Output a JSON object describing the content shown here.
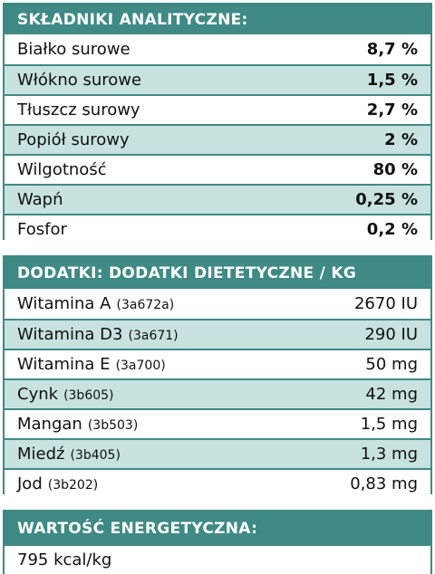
{
  "analytical": {
    "title": "SKŁADNIKI ANALITYCZNE:",
    "rows": [
      {
        "name": "Białko surowe",
        "value": "8,7 %"
      },
      {
        "name": "Włókno surowe",
        "value": "1,5 %"
      },
      {
        "name": "Tłuszcz surowy",
        "value": "2,7 %"
      },
      {
        "name": "Popiół surowy",
        "value": "2 %"
      },
      {
        "name": "Wilgotność",
        "value": "80 %"
      },
      {
        "name": "Wapń",
        "value": "0,25 %"
      },
      {
        "name": "Fosfor",
        "value": "0,2 %"
      }
    ]
  },
  "additives": {
    "title": "DODATKI: DODATKI DIETETYCZNE / KG",
    "rows": [
      {
        "name": "Witamina A",
        "code": "(3a672a)",
        "value": "2670 IU"
      },
      {
        "name": "Witamina D3",
        "code": "(3a671)",
        "value": "290 IU"
      },
      {
        "name": "Witamina E",
        "code": "(3a700)",
        "value": "50 mg"
      },
      {
        "name": "Cynk",
        "code": "(3b605)",
        "value": "42 mg"
      },
      {
        "name": "Mangan",
        "code": "(3b503)",
        "value": "1,5 mg"
      },
      {
        "name": "Miedź",
        "code": "(3b405)",
        "value": "1,3 mg"
      },
      {
        "name": "Jod",
        "code": "(3b202)",
        "value": "0,83 mg"
      }
    ]
  },
  "energy": {
    "title": "WARTOŚĆ ENERGETYCZNA:",
    "value": "795 kcal/kg"
  },
  "colors": {
    "header": "#3f8a85",
    "row_alt": "#c7e2df"
  }
}
